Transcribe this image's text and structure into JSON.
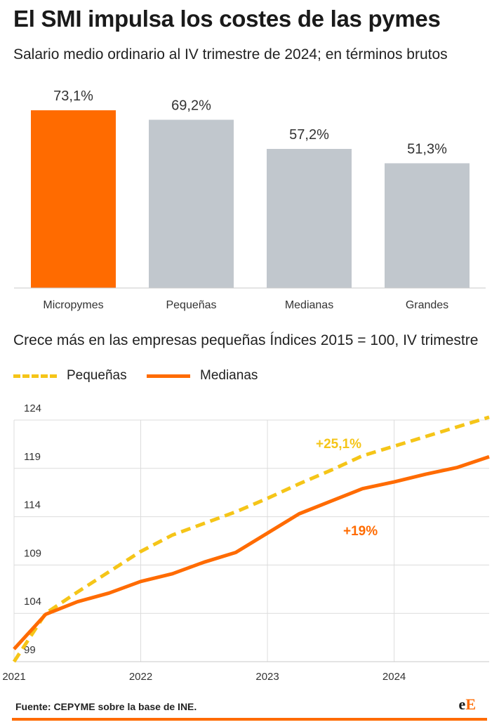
{
  "title": "El SMI impulsa los costes de las pymes",
  "subtitle": "Salario medio ordinario al IV trimestre de 2024; en términos brutos",
  "subtitle2": "Crece más en las empresas pequeñas Índices 2015 = 100, IV trimestre",
  "source": "Fuente: CEPYME sobre la base de INE.",
  "logo": {
    "lower": "e",
    "upper": "E"
  },
  "colors": {
    "orange": "#ff6b00",
    "gray": "#c1c7cd",
    "yellow": "#f5c518"
  },
  "chart_data": [
    {
      "type": "bar",
      "categories": [
        "Micropymes",
        "Pequeñas",
        "Medianas",
        "Grandes"
      ],
      "values": [
        73.1,
        69.2,
        57.2,
        51.3
      ],
      "value_labels": [
        "73,1%",
        "69,2%",
        "57,2%",
        "51,3%"
      ],
      "highlight": "Micropymes",
      "ylim": [
        0,
        73.1
      ]
    },
    {
      "type": "line",
      "x_ticks": [
        "2021",
        "2022",
        "2023",
        "2024"
      ],
      "y_ticks": [
        "99",
        "104",
        "109",
        "114",
        "119",
        "124"
      ],
      "ylim": [
        99,
        124
      ],
      "xlim": [
        2021,
        2024.75
      ],
      "grid": true,
      "legend": "top-left",
      "series": [
        {
          "name": "Pequeñas",
          "style": "dashed",
          "color": "#f5c518",
          "x": [
            2021.0,
            2021.25,
            2021.5,
            2021.75,
            2022.0,
            2022.25,
            2022.5,
            2022.75,
            2023.0,
            2023.25,
            2023.5,
            2023.75,
            2024.0,
            2024.25,
            2024.5,
            2024.75
          ],
          "y": [
            99.0,
            104.0,
            106.2,
            108.3,
            110.4,
            112.1,
            113.3,
            114.5,
            115.9,
            117.4,
            118.8,
            120.3,
            121.3,
            122.3,
            123.3,
            124.3
          ],
          "annotation": "+25,1%"
        },
        {
          "name": "Medianas",
          "style": "solid",
          "color": "#ff6b00",
          "x": [
            2021.0,
            2021.25,
            2021.5,
            2021.75,
            2022.0,
            2022.25,
            2022.5,
            2022.75,
            2023.0,
            2023.25,
            2023.5,
            2023.75,
            2024.0,
            2024.25,
            2024.5,
            2024.75
          ],
          "y": [
            100.3,
            103.9,
            105.2,
            106.1,
            107.3,
            108.1,
            109.3,
            110.3,
            112.3,
            114.3,
            115.6,
            116.9,
            117.6,
            118.4,
            119.1,
            120.2
          ],
          "annotation": "+19%"
        }
      ]
    }
  ]
}
